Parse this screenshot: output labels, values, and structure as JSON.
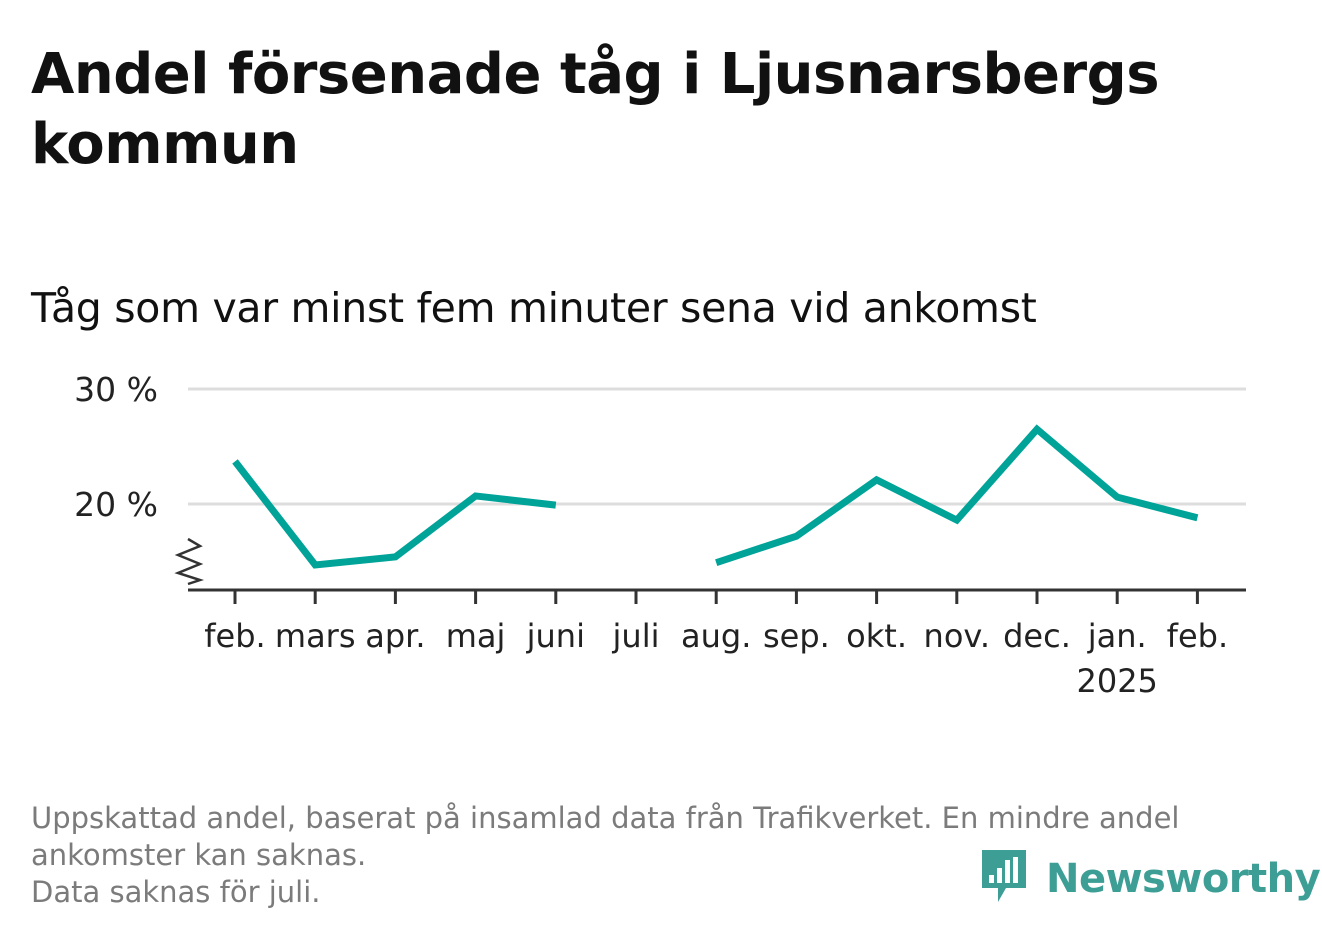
{
  "title": "Andel försenade tåg i Ljusnarsbergs kommun",
  "subtitle": "Tåg som var minst fem minuter sena vid ankomst",
  "footer": {
    "line1": "Uppskattad andel, baserat på insamlad data från Trafikverket. En mindre andel ankomster kan saknas.",
    "line2": "Data saknas för juli."
  },
  "brand": {
    "name": "Newsworthy",
    "color": "#3d9e96",
    "icon": "newsworthy-bar-chart-icon"
  },
  "chart_data": {
    "type": "line",
    "categories": [
      "feb.",
      "mars",
      "apr.",
      "maj",
      "juni",
      "juli",
      "aug.",
      "sep.",
      "okt.",
      "nov.",
      "dec.",
      "jan.",
      "feb."
    ],
    "year_labels": [
      "",
      "",
      "",
      "",
      "",
      "",
      "",
      "",
      "",
      "",
      "",
      "2025",
      ""
    ],
    "series": [
      {
        "values": [
          23.7,
          14.7,
          15.4,
          20.7,
          19.9,
          null,
          14.9,
          17.2,
          22.1,
          18.6,
          26.5,
          20.6,
          18.8
        ]
      }
    ],
    "yticks": [
      20,
      30
    ],
    "ytick_labels": [
      "20 %",
      "30 %"
    ],
    "ylim": [
      12.5,
      30
    ],
    "axis_break": true,
    "grid": true,
    "line_color": "#00a398",
    "xlabel": "",
    "ylabel": ""
  }
}
